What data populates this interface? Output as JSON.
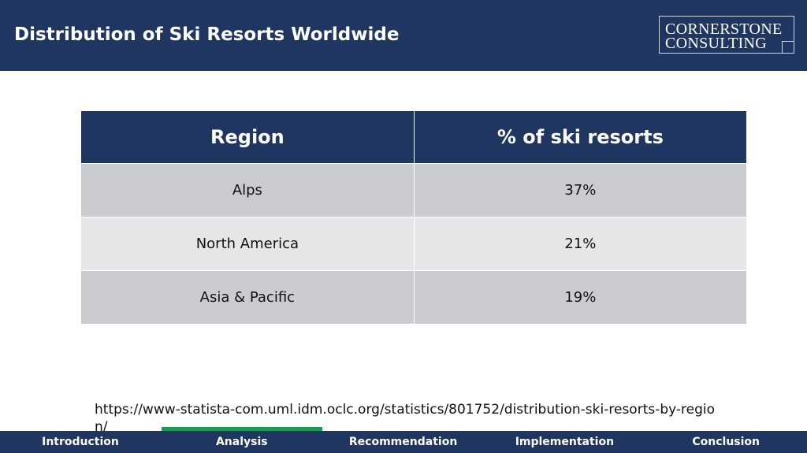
{
  "header": {
    "title": "Distribution of Ski Resorts Worldwide",
    "logo": [
      "CORNERSTONE",
      "CONSULTING"
    ]
  },
  "table": {
    "columns": [
      "Region",
      "% of ski resorts"
    ],
    "rows": [
      [
        "Alps",
        "37%"
      ],
      [
        "North America",
        "21%"
      ],
      [
        "Asia & Pacific",
        "19%"
      ]
    ]
  },
  "source": "https://www-statista-com.uml.idm.oclc.org/statistics/801752/distribution-ski-resorts-by-region/",
  "nav": {
    "items": [
      "Introduction",
      "Analysis",
      "Recommendation",
      "Implementation",
      "Conclusion"
    ],
    "active": 1
  }
}
